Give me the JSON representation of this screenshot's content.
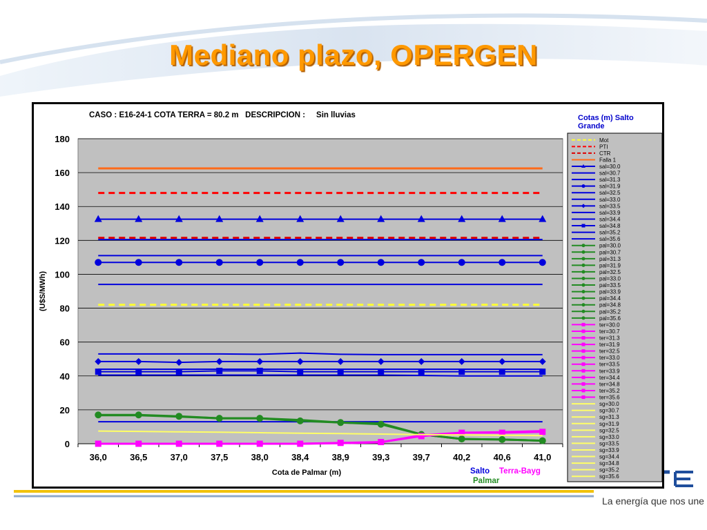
{
  "slide": {
    "title": "Mediano plazo, OPERGEN",
    "tagline": "La energía que nos une"
  },
  "chart_data": {
    "type": "line",
    "title_parts": {
      "caso_label": "CASO :",
      "caso_value": "E16-24-1 COTA TERRA = 80.2 m",
      "descripcion_label": "DESCRIPCION :",
      "descripcion_value": "Sin lluvias"
    },
    "xlabel": "Cota de Palmar (m)",
    "ylabel": "(U$S/MWh)",
    "categories": [
      "36,0",
      "36,5",
      "37,0",
      "37,5",
      "38,0",
      "38,4",
      "38,9",
      "39,3",
      "39,7",
      "40,2",
      "40,6",
      "41,0"
    ],
    "ylim": [
      0,
      180
    ],
    "yticks": [
      0,
      20,
      40,
      60,
      80,
      100,
      120,
      140,
      160,
      180
    ],
    "grid": true,
    "legend": {
      "title": "Cotas (m) Salto Grande",
      "placement": "right",
      "entries": [
        "Mot",
        "PTI",
        "CTR",
        "Falla 1",
        "sal=30.0",
        "sal=30.7",
        "sal=31.3",
        "sal=31.9",
        "sal=32.5",
        "sal=33.0",
        "sal=33.5",
        "sal=33.9",
        "sal=34.4",
        "sal=34.8",
        "sal=35.2",
        "sal=35.6",
        "pal=30.0",
        "pal=30.7",
        "pal=31.3",
        "pal=31.9",
        "pal=32.5",
        "pal=33.0",
        "pal=33.5",
        "pal=33.9",
        "pal=34.4",
        "pal=34.8",
        "pal=35.2",
        "pal=35.6",
        "ter=30.0",
        "ter=30.7",
        "ter=31.3",
        "ter=31.9",
        "ter=32.5",
        "ter=33.0",
        "ter=33.5",
        "ter=33.9",
        "ter=34.4",
        "ter=34.8",
        "ter=35.2",
        "ter=35.6",
        "sg=30.0",
        "sg=30.7",
        "sg=31.3",
        "sg=31.9",
        "sg=32.5",
        "sg=33.0",
        "sg=33.5",
        "sg=33.9",
        "sg=34.4",
        "sg=34.8",
        "sg=35.2",
        "sg=35.6"
      ]
    },
    "group_labels": {
      "salto": "Salto",
      "terra": "Terra-Bayg",
      "palmar": "Palmar"
    },
    "colors": {
      "mot": "#ffff33",
      "pti": "#ff0000",
      "ctr": "#dd0000",
      "falla": "#ff6a1a",
      "salto": "#0000dd",
      "palmar": "#228b22",
      "terra": "#ff00ff",
      "sg": "#ffff66",
      "plot_bg": "#c0c0c0",
      "legend_bg": "#c0c0c0",
      "title_blue": "#0000cc"
    },
    "series": [
      {
        "key": "mot",
        "style": "dash",
        "values": [
          82,
          82,
          82,
          82,
          82,
          82,
          82,
          82,
          82,
          82,
          82,
          82
        ]
      },
      {
        "key": "pti",
        "style": "dash",
        "values": [
          148,
          148,
          148,
          148,
          148,
          148,
          148,
          148,
          148,
          148,
          148,
          148
        ]
      },
      {
        "key": "ctr",
        "style": "dash",
        "values": [
          121.5,
          121.5,
          121.5,
          121.5,
          121.5,
          121.5,
          121.5,
          121.5,
          121.5,
          121.5,
          121.5,
          121.5
        ]
      },
      {
        "key": "falla",
        "style": "solid",
        "values": [
          162.5,
          162.5,
          162.5,
          162.5,
          162.5,
          162.5,
          162.5,
          162.5,
          162.5,
          162.5,
          162.5,
          162.5
        ]
      },
      {
        "key": "salto",
        "marker": "triangle",
        "values": [
          132.5,
          132.5,
          132.5,
          132.5,
          132.5,
          132.5,
          132.5,
          132.5,
          132.5,
          132.5,
          132.5,
          132.5
        ]
      },
      {
        "key": "salto",
        "values": [
          120.5,
          120.5,
          120.5,
          120.5,
          120.5,
          120.5,
          120.5,
          120.5,
          120.5,
          120.5,
          120.5,
          120.5
        ]
      },
      {
        "key": "salto",
        "values": [
          111,
          111,
          111,
          111,
          111,
          111,
          111,
          111,
          111,
          111,
          111,
          111
        ]
      },
      {
        "key": "salto",
        "marker": "circle",
        "values": [
          107,
          107,
          107,
          107,
          107,
          107,
          107,
          107,
          107,
          107,
          107,
          107
        ]
      },
      {
        "key": "salto",
        "values": [
          94,
          94,
          94,
          94,
          94,
          94,
          94,
          94,
          94,
          94,
          94,
          94
        ]
      },
      {
        "key": "salto",
        "values": [
          53,
          53,
          53,
          53,
          52.8,
          53.5,
          52.8,
          52.6,
          52.6,
          52.6,
          52.6,
          52.6
        ]
      },
      {
        "key": "salto",
        "marker": "diamond",
        "values": [
          48.5,
          48.5,
          48,
          48.5,
          48.5,
          48.5,
          48.5,
          48.5,
          48.5,
          48.5,
          48.5,
          48.5
        ]
      },
      {
        "key": "salto",
        "values": [
          44,
          44,
          44,
          44,
          44,
          44,
          44,
          44,
          44,
          44,
          44,
          44
        ]
      },
      {
        "key": "salto",
        "marker": "square",
        "values": [
          42.5,
          42.5,
          42.5,
          43,
          43,
          42.5,
          42.5,
          42.5,
          42.5,
          42.5,
          42.5,
          42.5
        ]
      },
      {
        "key": "salto",
        "values": [
          40.5,
          40.5,
          40.5,
          40.5,
          40.5,
          40.5,
          40.5,
          40.5,
          40.3,
          40,
          40,
          40
        ]
      },
      {
        "key": "salto",
        "values": [
          13,
          13,
          13,
          13,
          13,
          13,
          13,
          13,
          13,
          13,
          13,
          13
        ]
      },
      {
        "key": "palmar",
        "marker": "circle",
        "values": [
          17,
          17,
          16.2,
          15,
          15,
          13.5,
          12.5,
          11.5,
          5.5,
          2.8,
          2.5,
          1.8
        ]
      },
      {
        "key": "palmar",
        "values": [
          16.8,
          16.8,
          16,
          15,
          15,
          14,
          12.5,
          12,
          5.5,
          2.8,
          2.5,
          1.8
        ]
      },
      {
        "key": "terra",
        "marker": "square",
        "values": [
          0,
          0,
          0,
          0,
          0,
          0,
          0.5,
          1,
          4.5,
          6.5,
          6.5,
          7
        ]
      },
      {
        "key": "terra",
        "values": [
          0,
          0,
          0,
          0,
          0,
          0,
          0.3,
          0.8,
          5,
          6.5,
          6.8,
          7.5
        ]
      },
      {
        "key": "sg",
        "values": [
          7.5,
          7.3,
          7,
          6.8,
          6.5,
          6.2,
          6,
          5.7,
          5.4,
          5.2,
          5,
          4.8
        ]
      }
    ]
  }
}
